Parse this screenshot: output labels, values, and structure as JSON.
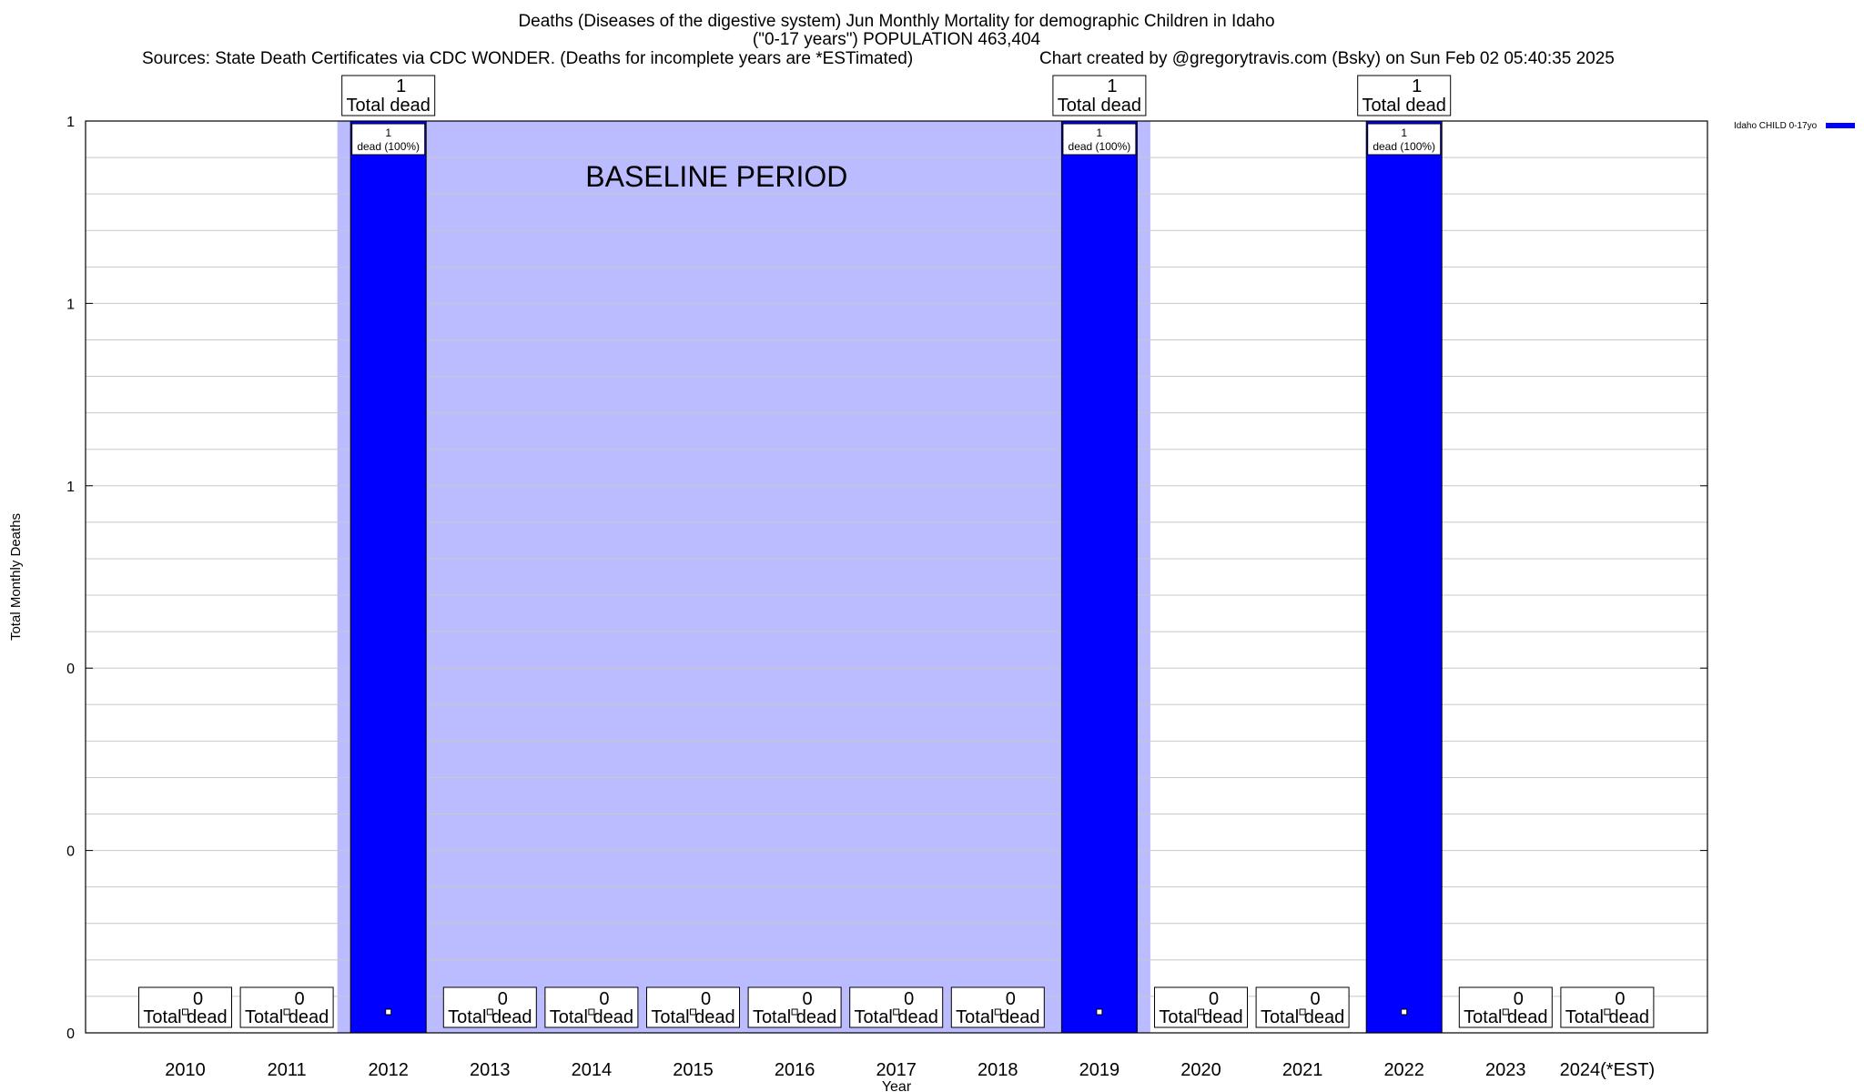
{
  "chart_data": {
    "type": "bar",
    "title": "Deaths (Diseases of the digestive system) Jun Monthly Mortality for demographic Children in Idaho",
    "subtitle": "(\"0-17 years\") POPULATION 463,404",
    "sources": "Sources: State Death Certificates via CDC WONDER. (Deaths for incomplete years are *ESTimated)",
    "credit": "Chart created by @gregorytravis.com (Bsky) on Sun Feb 02 05:40:35 2025",
    "xlabel": "Year",
    "ylabel": "Total Monthly Deaths",
    "categories": [
      "2010",
      "2011",
      "2012",
      "2013",
      "2014",
      "2015",
      "2016",
      "2017",
      "2018",
      "2019",
      "2020",
      "2021",
      "2022",
      "2023",
      "2024(*EST)"
    ],
    "series": [
      {
        "name": "Idaho CHILD 0-17yo",
        "color": "#0000ff",
        "values": [
          0,
          0,
          1,
          0,
          0,
          0,
          0,
          0,
          0,
          1,
          0,
          0,
          1,
          0,
          0
        ]
      }
    ],
    "ylim": [
      0,
      1
    ],
    "y_tick_labels": [
      "0",
      "0",
      "0",
      "1",
      "1",
      "1"
    ],
    "grid": true,
    "legend_position": "top-right",
    "total_label_suffix": "Total dead",
    "bar_inner_labels": [
      "1",
      "dead (100%)"
    ],
    "baseline": {
      "label": "BASELINE PERIOD",
      "from": "2012",
      "to": "2019",
      "color": "#bbbbff"
    }
  }
}
